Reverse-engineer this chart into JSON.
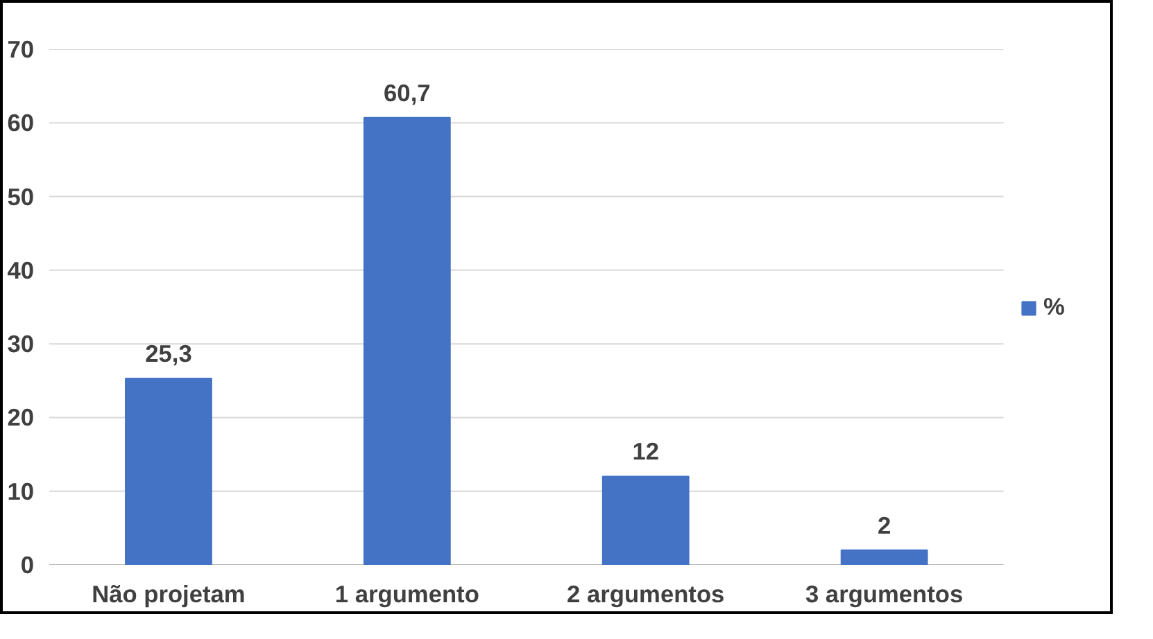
{
  "chart_data": {
    "type": "bar",
    "categories": [
      "Não projetam",
      "1 argumento",
      "2 argumentos",
      "3 argumentos"
    ],
    "series": [
      {
        "name": "%",
        "color": "#4472c4",
        "values": [
          25.3,
          60.7,
          12,
          2
        ],
        "value_labels": [
          "25,3",
          "60,7",
          "12",
          "2"
        ]
      }
    ],
    "ylim": [
      0,
      70
    ],
    "yticks": [
      0,
      10,
      20,
      30,
      40,
      50,
      60,
      70
    ],
    "grid": "y",
    "legend": "right"
  }
}
